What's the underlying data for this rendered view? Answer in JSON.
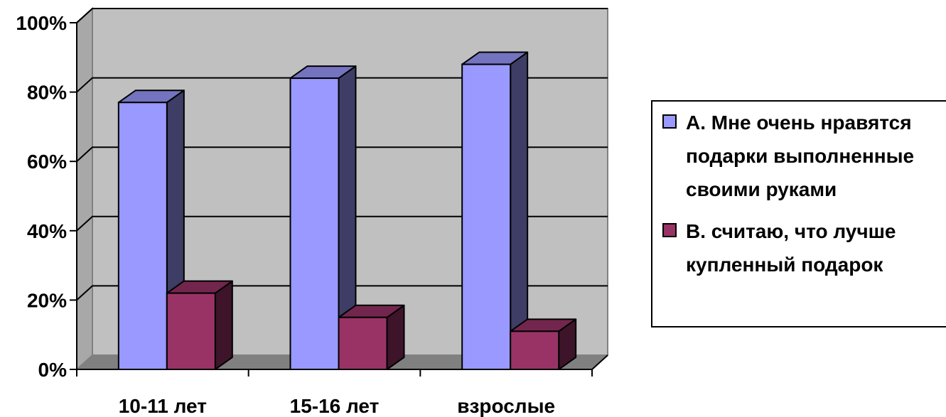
{
  "chart_data": {
    "type": "bar",
    "categories": [
      "10-11 лет",
      "15-16 лет",
      "взрослые"
    ],
    "series": [
      {
        "name": "А. Мне очень нравятся подарки выполненные своими руками",
        "legend_lines": [
          "А. Мне очень нравятся",
          "подарки выполненные",
          "своими руками"
        ],
        "values": [
          77,
          84,
          88
        ],
        "color": "#9999ff"
      },
      {
        "name": "В. считаю, что лучше купленный подарок",
        "legend_lines": [
          "В. считаю, что лучше",
          "купленный подарок"
        ],
        "values": [
          22,
          15,
          11
        ],
        "color": "#993366"
      }
    ],
    "ylim": [
      0,
      100
    ],
    "yticks": [
      "0%",
      "20%",
      "40%",
      "60%",
      "80%",
      "100%"
    ],
    "grid": true,
    "legend_position": "right",
    "style": "3d-column"
  },
  "colors": {
    "wall": "#c0c0c0",
    "floor": "#808080",
    "gridline": "#000000"
  }
}
